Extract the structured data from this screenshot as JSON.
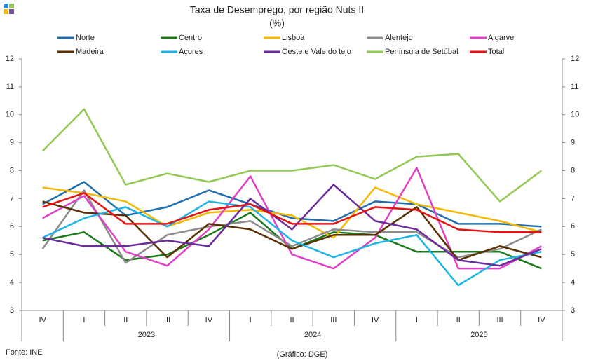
{
  "chart_data": {
    "type": "line",
    "title": "Taxa de Desemprego, por região Nuts II",
    "subtitle": "(%)",
    "source": "Fonte: INE",
    "credit": "(Gráfico: DGE)",
    "categories": [
      "IV",
      "I",
      "II",
      "III",
      "IV",
      "I",
      "II",
      "III",
      "IV",
      "I",
      "II",
      "III",
      "IV"
    ],
    "category_groups": [
      {
        "label": "2023",
        "from": 1,
        "to": 4
      },
      {
        "label": "2024",
        "from": 5,
        "to": 8
      },
      {
        "label": "2025",
        "from": 9,
        "to": 12
      }
    ],
    "ylim": [
      3,
      12
    ],
    "yticks": [
      3,
      4,
      5,
      6,
      7,
      8,
      9,
      10,
      11,
      12
    ],
    "grid": false,
    "series": [
      {
        "name": "Norte",
        "color": "#1f6fb0",
        "values": [
          6.8,
          7.6,
          6.4,
          6.7,
          7.3,
          6.8,
          6.3,
          6.2,
          6.9,
          6.8,
          6.1,
          6.1,
          6.0
        ]
      },
      {
        "name": "Centro",
        "color": "#1a7a1a",
        "values": [
          5.5,
          5.8,
          4.8,
          5.0,
          5.7,
          6.5,
          5.2,
          5.8,
          5.7,
          5.1,
          5.1,
          5.1,
          4.5
        ]
      },
      {
        "name": "Lisboa",
        "color": "#f5b800",
        "values": [
          7.4,
          7.2,
          6.9,
          6.0,
          6.5,
          6.6,
          6.4,
          5.6,
          7.4,
          6.8,
          6.5,
          6.2,
          5.8
        ]
      },
      {
        "name": "Alentejo",
        "color": "#8c8c8c",
        "values": [
          5.2,
          7.3,
          4.7,
          5.7,
          6.0,
          6.2,
          5.3,
          5.9,
          5.8,
          5.8,
          4.9,
          5.2,
          5.9
        ]
      },
      {
        "name": "Algarve",
        "color": "#e040c8",
        "values": [
          6.3,
          7.1,
          5.1,
          4.6,
          5.9,
          7.8,
          5.0,
          4.5,
          5.6,
          8.1,
          4.5,
          4.5,
          5.3
        ]
      },
      {
        "name": "Madeira",
        "color": "#5a3000",
        "values": [
          6.9,
          6.5,
          6.4,
          4.9,
          6.1,
          5.9,
          5.2,
          5.7,
          5.7,
          6.7,
          4.8,
          5.3,
          4.9
        ]
      },
      {
        "name": "Açores",
        "color": "#1eb4e6",
        "values": [
          5.6,
          6.3,
          6.7,
          6.0,
          6.9,
          6.7,
          5.5,
          4.9,
          5.4,
          5.7,
          3.9,
          4.8,
          5.1
        ]
      },
      {
        "name": "Oeste e Vale do tejo",
        "color": "#6a2c9a",
        "values": [
          5.6,
          5.3,
          5.3,
          5.5,
          5.3,
          7.0,
          5.9,
          7.5,
          6.2,
          5.9,
          4.8,
          4.6,
          5.2
        ]
      },
      {
        "name": "Península de Setúbal",
        "color": "#92c853",
        "values": [
          8.7,
          10.2,
          7.5,
          7.9,
          7.6,
          8.0,
          8.0,
          8.2,
          7.7,
          8.5,
          8.6,
          6.9,
          8.0
        ]
      },
      {
        "name": "Total",
        "color": "#e81010",
        "values": [
          6.7,
          7.2,
          6.1,
          6.1,
          6.6,
          6.8,
          6.1,
          6.1,
          6.7,
          6.6,
          5.9,
          5.8,
          5.8
        ]
      }
    ]
  }
}
